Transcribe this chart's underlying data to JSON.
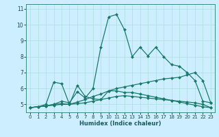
{
  "title": "",
  "xlabel": "Humidex (Indice chaleur)",
  "bg_color": "#cceeff",
  "line_color": "#1a7a6a",
  "grid_color": "#aadddd",
  "xlim": [
    -0.5,
    23.5
  ],
  "ylim": [
    4.5,
    11.3
  ],
  "yticks": [
    5,
    6,
    7,
    8,
    9,
    10,
    11
  ],
  "xticks": [
    0,
    1,
    2,
    3,
    4,
    5,
    6,
    7,
    8,
    9,
    10,
    11,
    12,
    13,
    14,
    15,
    16,
    17,
    18,
    19,
    20,
    21,
    22,
    23
  ],
  "line1_x": [
    0,
    1,
    2,
    3,
    4,
    5,
    6,
    7,
    8,
    9,
    10,
    11,
    12,
    13,
    14,
    15,
    16,
    17,
    18,
    19,
    20,
    21,
    22,
    23
  ],
  "line1_y": [
    4.8,
    4.85,
    4.9,
    5.0,
    5.2,
    5.1,
    5.8,
    5.4,
    6.0,
    8.6,
    10.5,
    10.65,
    9.7,
    8.0,
    8.6,
    8.05,
    8.6,
    8.0,
    7.5,
    7.4,
    7.0,
    6.5,
    5.2,
    5.1
  ],
  "line2_x": [
    0,
    1,
    2,
    3,
    4,
    5,
    6,
    7,
    8,
    9,
    10,
    11,
    12,
    13,
    14,
    15,
    16,
    17,
    18,
    19,
    20,
    21,
    22,
    23
  ],
  "line2_y": [
    4.8,
    4.85,
    5.0,
    6.4,
    6.3,
    5.0,
    6.2,
    5.5,
    5.35,
    5.3,
    5.85,
    5.85,
    5.75,
    5.75,
    5.65,
    5.55,
    5.45,
    5.35,
    5.25,
    5.15,
    5.05,
    4.95,
    4.85,
    4.8
  ],
  "line3_x": [
    0,
    1,
    2,
    3,
    4,
    5,
    6,
    7,
    8,
    9,
    10,
    11,
    12,
    13,
    14,
    15,
    16,
    17,
    18,
    19,
    20,
    21,
    22,
    23
  ],
  "line3_y": [
    4.8,
    4.85,
    4.9,
    5.0,
    5.05,
    5.0,
    5.15,
    5.3,
    5.5,
    5.65,
    5.85,
    6.0,
    6.1,
    6.2,
    6.3,
    6.4,
    6.5,
    6.6,
    6.65,
    6.7,
    6.85,
    7.0,
    6.5,
    5.1
  ],
  "line4_x": [
    0,
    1,
    2,
    3,
    4,
    5,
    6,
    7,
    8,
    9,
    10,
    11,
    12,
    13,
    14,
    15,
    16,
    17,
    18,
    19,
    20,
    21,
    22,
    23
  ],
  "line4_y": [
    4.8,
    4.85,
    4.9,
    4.95,
    5.0,
    5.0,
    5.05,
    5.1,
    5.2,
    5.3,
    5.4,
    5.5,
    5.55,
    5.5,
    5.45,
    5.4,
    5.35,
    5.3,
    5.25,
    5.2,
    5.15,
    5.1,
    5.0,
    4.8
  ]
}
